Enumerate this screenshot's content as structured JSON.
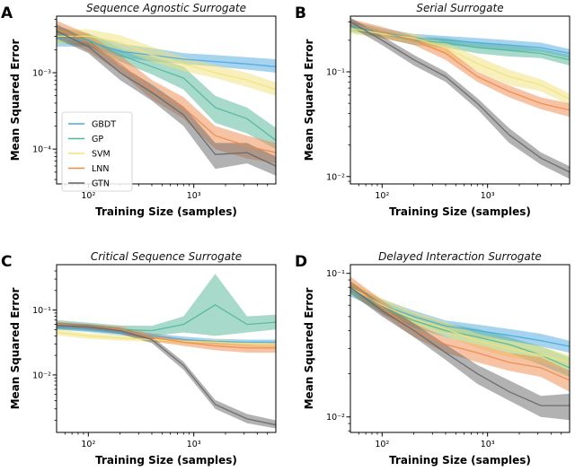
{
  "legend": [
    "GBDT",
    "GP",
    "SVM",
    "LNN",
    "GTN"
  ],
  "colors": {
    "GBDT": "#4ea8de",
    "GP": "#52b69a",
    "SVM": "#f2e27a",
    "LNN": "#ee8a4a",
    "GTN": "#666666"
  },
  "chart_data": [
    {
      "type": "line",
      "panel": "A",
      "title": "Sequence Agnostic Surrogate",
      "xlabel": "Training Size (samples)",
      "ylabel": "Mean Squared Error",
      "xscale": "log",
      "yscale": "log",
      "xlim": [
        50,
        6000
      ],
      "ylim": [
        3.5e-05,
        0.0055
      ],
      "xticks": [
        {
          "value": 100,
          "label": "10²"
        },
        {
          "value": 1000,
          "label": "10³"
        }
      ],
      "yticks": [
        {
          "value": 0.001,
          "label": "10⁻³"
        },
        {
          "value": 0.0001,
          "label": "10⁻⁴"
        }
      ],
      "legend_position": "lower-left",
      "x": [
        50,
        100,
        200,
        400,
        800,
        1600,
        3200,
        6000
      ],
      "series": [
        {
          "name": "GBDT",
          "values": [
            0.0028,
            0.0026,
            0.0019,
            0.0017,
            0.0015,
            0.0014,
            0.0013,
            0.0012
          ],
          "lower": [
            0.0022,
            0.0022,
            0.0016,
            0.0014,
            0.0013,
            0.0012,
            0.0011,
            0.001
          ],
          "upper": [
            0.0034,
            0.0032,
            0.0024,
            0.0021,
            0.0018,
            0.0017,
            0.0016,
            0.0015
          ]
        },
        {
          "name": "GP",
          "values": [
            0.0032,
            0.0027,
            0.0017,
            0.0012,
            0.00085,
            0.00035,
            0.00025,
            0.00013
          ],
          "lower": [
            0.0025,
            0.0022,
            0.0014,
            0.00095,
            0.0006,
            0.00022,
            0.00016,
            0.0001
          ],
          "upper": [
            0.004,
            0.0033,
            0.0021,
            0.0016,
            0.0012,
            0.0005,
            0.00035,
            0.00019
          ]
        },
        {
          "name": "SVM",
          "values": [
            0.003,
            0.003,
            0.0025,
            0.0017,
            0.0013,
            0.001,
            0.0008,
            0.0006
          ],
          "lower": [
            0.0024,
            0.0025,
            0.002,
            0.0014,
            0.00105,
            0.00085,
            0.00065,
            0.0005
          ],
          "upper": [
            0.0037,
            0.0037,
            0.0031,
            0.0022,
            0.0016,
            0.00125,
            0.001,
            0.00075
          ]
        },
        {
          "name": "LNN",
          "values": [
            0.0038,
            0.0025,
            0.0013,
            0.0006,
            0.00035,
            0.00015,
            0.00011,
            9e-05
          ],
          "lower": [
            0.003,
            0.0019,
            0.001,
            0.00045,
            0.00025,
            0.0001,
            7.5e-05,
            6.5e-05
          ],
          "upper": [
            0.0048,
            0.0032,
            0.0017,
            0.0008,
            0.00048,
            0.0002,
            0.00015,
            0.00012
          ]
        },
        {
          "name": "GTN",
          "values": [
            0.0035,
            0.0022,
            0.001,
            0.00055,
            0.00028,
            8.5e-05,
            9e-05,
            6e-05
          ],
          "lower": [
            0.0028,
            0.0018,
            0.0008,
            0.00043,
            0.0002,
            5.5e-05,
            6.5e-05,
            4.5e-05
          ],
          "upper": [
            0.0043,
            0.0027,
            0.00125,
            0.0007,
            0.00036,
            0.00012,
            0.00012,
            8e-05
          ]
        }
      ]
    },
    {
      "type": "line",
      "panel": "B",
      "title": "Serial Surrogate",
      "xlabel": "Training Size (samples)",
      "ylabel": "Mean Squared Error",
      "xscale": "log",
      "yscale": "log",
      "xlim": [
        50,
        6000
      ],
      "ylim": [
        0.0085,
        0.34
      ],
      "xticks": [
        {
          "value": 100,
          "label": "10²"
        },
        {
          "value": 1000,
          "label": "10³"
        }
      ],
      "yticks": [
        {
          "value": 0.1,
          "label": "10⁻¹"
        },
        {
          "value": 0.01,
          "label": "10⁻²"
        }
      ],
      "x": [
        50,
        100,
        200,
        400,
        800,
        1600,
        3200,
        6000
      ],
      "series": [
        {
          "name": "GBDT",
          "values": [
            0.28,
            0.24,
            0.21,
            0.2,
            0.19,
            0.18,
            0.17,
            0.15
          ],
          "lower": [
            0.25,
            0.22,
            0.19,
            0.18,
            0.17,
            0.16,
            0.155,
            0.135
          ],
          "upper": [
            0.31,
            0.26,
            0.23,
            0.22,
            0.21,
            0.2,
            0.19,
            0.165
          ]
        },
        {
          "name": "GP",
          "values": [
            0.27,
            0.23,
            0.2,
            0.19,
            0.17,
            0.16,
            0.15,
            0.13
          ],
          "lower": [
            0.24,
            0.21,
            0.18,
            0.17,
            0.15,
            0.14,
            0.135,
            0.115
          ],
          "upper": [
            0.3,
            0.25,
            0.22,
            0.21,
            0.19,
            0.18,
            0.165,
            0.145
          ]
        },
        {
          "name": "SVM",
          "values": [
            0.26,
            0.23,
            0.21,
            0.17,
            0.12,
            0.09,
            0.075,
            0.055
          ],
          "lower": [
            0.23,
            0.21,
            0.19,
            0.15,
            0.1,
            0.075,
            0.065,
            0.048
          ],
          "upper": [
            0.29,
            0.25,
            0.23,
            0.19,
            0.14,
            0.105,
            0.085,
            0.062
          ]
        },
        {
          "name": "LNN",
          "values": [
            0.29,
            0.24,
            0.2,
            0.15,
            0.09,
            0.065,
            0.05,
            0.043
          ],
          "lower": [
            0.26,
            0.21,
            0.18,
            0.13,
            0.08,
            0.057,
            0.044,
            0.037
          ],
          "upper": [
            0.32,
            0.27,
            0.22,
            0.17,
            0.1,
            0.074,
            0.057,
            0.05
          ]
        },
        {
          "name": "GTN",
          "values": [
            0.3,
            0.2,
            0.13,
            0.09,
            0.05,
            0.025,
            0.015,
            0.011
          ],
          "lower": [
            0.27,
            0.18,
            0.115,
            0.08,
            0.044,
            0.021,
            0.013,
            0.0095
          ],
          "upper": [
            0.33,
            0.22,
            0.145,
            0.1,
            0.056,
            0.029,
            0.017,
            0.0125
          ]
        }
      ]
    },
    {
      "type": "line",
      "panel": "C",
      "title": "Critical Sequence Surrogate",
      "xlabel": "Training Size (samples)",
      "ylabel": "Mean Squared Error",
      "xscale": "log",
      "yscale": "log",
      "xlim": [
        50,
        6000
      ],
      "ylim": [
        0.0013,
        0.5
      ],
      "xticks": [
        {
          "value": 100,
          "label": "10²"
        },
        {
          "value": 1000,
          "label": "10³"
        }
      ],
      "yticks": [
        {
          "value": 0.1,
          "label": "10⁻¹"
        },
        {
          "value": 0.01,
          "label": "10⁻²"
        }
      ],
      "x": [
        50,
        100,
        200,
        400,
        800,
        1600,
        3200,
        6000
      ],
      "series": [
        {
          "name": "GBDT",
          "values": [
            0.055,
            0.05,
            0.045,
            0.04,
            0.035,
            0.033,
            0.032,
            0.032
          ],
          "lower": [
            0.05,
            0.046,
            0.041,
            0.036,
            0.032,
            0.03,
            0.029,
            0.029
          ],
          "upper": [
            0.06,
            0.055,
            0.05,
            0.044,
            0.039,
            0.036,
            0.035,
            0.035
          ]
        },
        {
          "name": "GP",
          "values": [
            0.06,
            0.055,
            0.05,
            0.048,
            0.06,
            0.12,
            0.06,
            0.065
          ],
          "lower": [
            0.05,
            0.047,
            0.043,
            0.04,
            0.045,
            0.04,
            0.045,
            0.05
          ],
          "upper": [
            0.07,
            0.064,
            0.058,
            0.057,
            0.08,
            0.36,
            0.08,
            0.085
          ]
        },
        {
          "name": "SVM",
          "values": [
            0.045,
            0.04,
            0.037,
            0.035,
            0.033,
            0.032,
            0.03,
            0.029
          ],
          "lower": [
            0.041,
            0.036,
            0.034,
            0.032,
            0.03,
            0.029,
            0.027,
            0.026
          ],
          "upper": [
            0.05,
            0.044,
            0.041,
            0.039,
            0.036,
            0.035,
            0.033,
            0.032
          ]
        },
        {
          "name": "LNN",
          "values": [
            0.06,
            0.055,
            0.05,
            0.038,
            0.032,
            0.028,
            0.026,
            0.026
          ],
          "lower": [
            0.054,
            0.049,
            0.044,
            0.033,
            0.028,
            0.024,
            0.022,
            0.022
          ],
          "upper": [
            0.066,
            0.061,
            0.056,
            0.043,
            0.036,
            0.032,
            0.03,
            0.03
          ]
        },
        {
          "name": "GTN",
          "values": [
            0.058,
            0.055,
            0.048,
            0.035,
            0.014,
            0.0035,
            0.0021,
            0.0017
          ],
          "lower": [
            0.052,
            0.05,
            0.043,
            0.031,
            0.012,
            0.003,
            0.0018,
            0.0015
          ],
          "upper": [
            0.064,
            0.06,
            0.053,
            0.039,
            0.016,
            0.0041,
            0.0025,
            0.002
          ]
        }
      ]
    },
    {
      "type": "line",
      "panel": "D",
      "title": "Delayed Interaction Surrogate",
      "xlabel": "Training Size (samples)",
      "ylabel": "Mean Squared Error",
      "xscale": "log",
      "yscale": "log",
      "xlim": [
        50,
        6000
      ],
      "ylim": [
        0.0078,
        0.115
      ],
      "xticks": [
        {
          "value": 100,
          "label": "10²"
        },
        {
          "value": 1000,
          "label": "10³"
        }
      ],
      "yticks": [
        {
          "value": 0.1,
          "label": "10⁻¹"
        },
        {
          "value": 0.01,
          "label": "10⁻²"
        }
      ],
      "x": [
        50,
        100,
        200,
        400,
        800,
        1600,
        3200,
        6000
      ],
      "series": [
        {
          "name": "GBDT",
          "values": [
            0.075,
            0.06,
            0.05,
            0.043,
            0.04,
            0.037,
            0.034,
            0.031
          ],
          "lower": [
            0.069,
            0.055,
            0.046,
            0.039,
            0.036,
            0.034,
            0.031,
            0.028
          ],
          "upper": [
            0.082,
            0.066,
            0.055,
            0.047,
            0.044,
            0.041,
            0.038,
            0.034
          ]
        },
        {
          "name": "GP",
          "values": [
            0.078,
            0.058,
            0.047,
            0.04,
            0.036,
            0.032,
            0.027,
            0.022
          ],
          "lower": [
            0.071,
            0.052,
            0.042,
            0.036,
            0.032,
            0.028,
            0.023,
            0.019
          ],
          "upper": [
            0.086,
            0.064,
            0.052,
            0.045,
            0.041,
            0.036,
            0.031,
            0.026
          ]
        },
        {
          "name": "SVM",
          "values": [
            0.08,
            0.06,
            0.048,
            0.041,
            0.034,
            0.03,
            0.027,
            0.024
          ],
          "lower": [
            0.072,
            0.054,
            0.043,
            0.037,
            0.03,
            0.026,
            0.024,
            0.021
          ],
          "upper": [
            0.089,
            0.067,
            0.054,
            0.046,
            0.038,
            0.034,
            0.031,
            0.027
          ]
        },
        {
          "name": "LNN",
          "values": [
            0.085,
            0.058,
            0.04,
            0.032,
            0.028,
            0.024,
            0.022,
            0.018
          ],
          "lower": [
            0.076,
            0.052,
            0.036,
            0.028,
            0.024,
            0.021,
            0.019,
            0.015
          ],
          "upper": [
            0.095,
            0.065,
            0.045,
            0.036,
            0.032,
            0.028,
            0.026,
            0.021
          ]
        },
        {
          "name": "GTN",
          "values": [
            0.08,
            0.055,
            0.04,
            0.028,
            0.02,
            0.015,
            0.012,
            0.012
          ],
          "lower": [
            0.073,
            0.05,
            0.036,
            0.025,
            0.017,
            0.013,
            0.01,
            0.0095
          ],
          "upper": [
            0.088,
            0.061,
            0.045,
            0.032,
            0.023,
            0.018,
            0.014,
            0.0145
          ]
        }
      ]
    }
  ]
}
